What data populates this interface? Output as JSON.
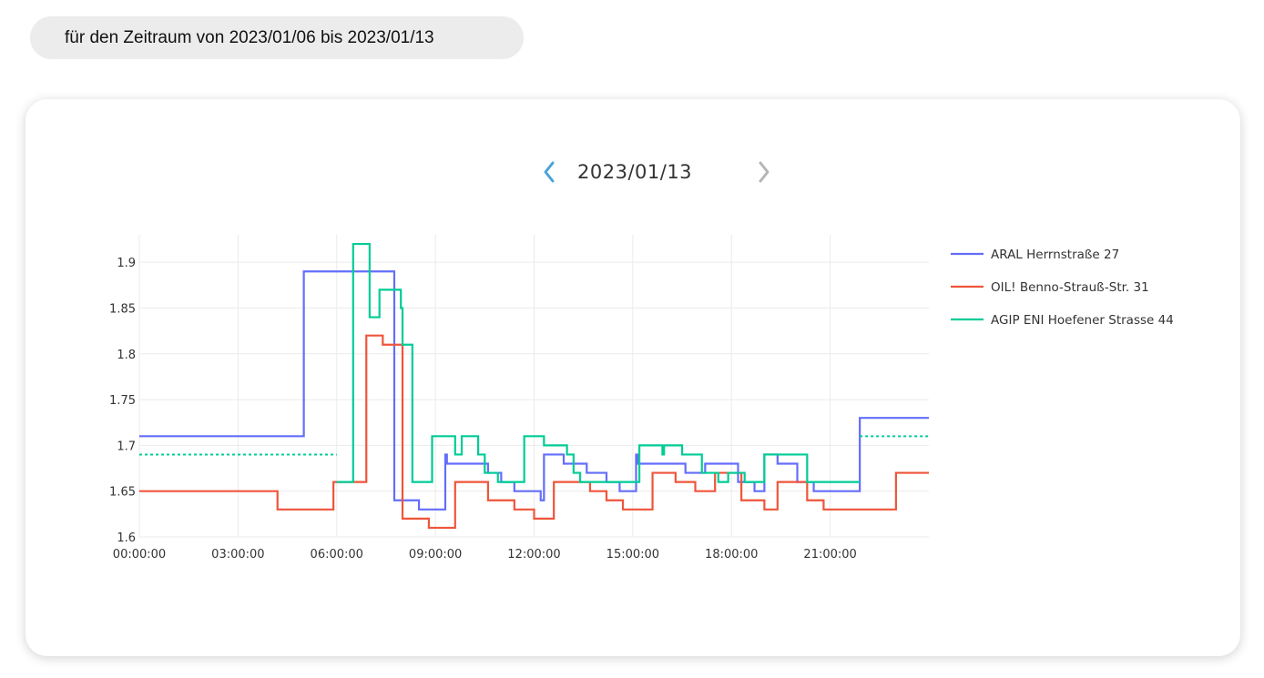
{
  "period_label": "für den Zeitraum von 2023/01/06 bis 2023/01/13",
  "date_nav": {
    "current_date": "2023/01/13",
    "prev_icon": "chevron-left-icon",
    "next_icon": "chevron-right-icon",
    "prev_color": "#4aa3d9",
    "next_color": "#b5b5b5"
  },
  "chart_data": {
    "type": "line",
    "line_shape": "step",
    "x_unit": "hours",
    "x_range": [
      0,
      24
    ],
    "y_range": [
      1.6,
      1.93
    ],
    "x_ticks": [
      "00:00:00",
      "03:00:00",
      "06:00:00",
      "09:00:00",
      "12:00:00",
      "15:00:00",
      "18:00:00",
      "21:00:00"
    ],
    "y_ticks": [
      "1.6",
      "1.65",
      "1.7",
      "1.75",
      "1.8",
      "1.85",
      "1.9"
    ],
    "y_tick_values": [
      1.6,
      1.65,
      1.7,
      1.75,
      1.8,
      1.85,
      1.9
    ],
    "grid": true,
    "legend_position": "right",
    "series": [
      {
        "name": "ARAL Herrnstraße 27",
        "color": "#636efa",
        "points": [
          [
            0,
            1.71
          ],
          [
            5.0,
            1.89
          ],
          [
            7.75,
            1.64
          ],
          [
            8.5,
            1.63
          ],
          [
            9.3,
            1.69
          ],
          [
            9.35,
            1.68
          ],
          [
            10.6,
            1.67
          ],
          [
            11.0,
            1.66
          ],
          [
            11.4,
            1.65
          ],
          [
            12.2,
            1.64
          ],
          [
            12.3,
            1.69
          ],
          [
            12.9,
            1.68
          ],
          [
            13.6,
            1.67
          ],
          [
            14.2,
            1.66
          ],
          [
            14.6,
            1.65
          ],
          [
            15.1,
            1.69
          ],
          [
            15.15,
            1.68
          ],
          [
            16.6,
            1.67
          ],
          [
            17.2,
            1.68
          ],
          [
            18.2,
            1.66
          ],
          [
            18.7,
            1.65
          ],
          [
            19.0,
            1.69
          ],
          [
            19.4,
            1.68
          ],
          [
            20.0,
            1.66
          ],
          [
            20.5,
            1.65
          ],
          [
            21.9,
            1.73
          ],
          [
            24.0,
            1.73
          ]
        ]
      },
      {
        "name": "OIL! Benno-Strauß-Str. 31",
        "color": "#ef553b",
        "points": [
          [
            0,
            1.65
          ],
          [
            4.2,
            1.63
          ],
          [
            5.9,
            1.66
          ],
          [
            6.9,
            1.82
          ],
          [
            7.4,
            1.81
          ],
          [
            8.0,
            1.62
          ],
          [
            8.8,
            1.61
          ],
          [
            9.6,
            1.66
          ],
          [
            10.6,
            1.64
          ],
          [
            11.4,
            1.63
          ],
          [
            12.0,
            1.62
          ],
          [
            12.6,
            1.66
          ],
          [
            13.7,
            1.65
          ],
          [
            14.2,
            1.64
          ],
          [
            14.7,
            1.63
          ],
          [
            15.6,
            1.67
          ],
          [
            16.3,
            1.66
          ],
          [
            16.9,
            1.65
          ],
          [
            17.5,
            1.67
          ],
          [
            18.3,
            1.64
          ],
          [
            19.0,
            1.63
          ],
          [
            19.4,
            1.66
          ],
          [
            20.3,
            1.64
          ],
          [
            20.8,
            1.63
          ],
          [
            23.0,
            1.67
          ],
          [
            24.0,
            1.67
          ]
        ]
      },
      {
        "name": "AGIP ENI Hoefener Strasse 44",
        "color": "#00cc96",
        "gap_fill_segments": [
          [
            [
              0,
              1.69
            ],
            [
              6.0,
              1.69
            ]
          ],
          [
            [
              21.9,
              1.71
            ],
            [
              24.0,
              1.71
            ]
          ]
        ],
        "points": [
          [
            6.0,
            1.66
          ],
          [
            6.5,
            1.92
          ],
          [
            7.0,
            1.84
          ],
          [
            7.3,
            1.87
          ],
          [
            7.95,
            1.85
          ],
          [
            8.0,
            1.81
          ],
          [
            8.3,
            1.66
          ],
          [
            8.9,
            1.71
          ],
          [
            9.6,
            1.69
          ],
          [
            9.8,
            1.71
          ],
          [
            10.3,
            1.69
          ],
          [
            10.5,
            1.67
          ],
          [
            10.9,
            1.66
          ],
          [
            11.7,
            1.71
          ],
          [
            12.3,
            1.7
          ],
          [
            13.0,
            1.69
          ],
          [
            13.2,
            1.67
          ],
          [
            13.4,
            1.66
          ],
          [
            15.2,
            1.7
          ],
          [
            15.9,
            1.69
          ],
          [
            15.95,
            1.7
          ],
          [
            16.5,
            1.69
          ],
          [
            17.1,
            1.67
          ],
          [
            17.6,
            1.66
          ],
          [
            17.9,
            1.67
          ],
          [
            18.4,
            1.66
          ],
          [
            19.0,
            1.69
          ],
          [
            20.3,
            1.66
          ],
          [
            21.9,
            1.66
          ]
        ]
      }
    ]
  }
}
